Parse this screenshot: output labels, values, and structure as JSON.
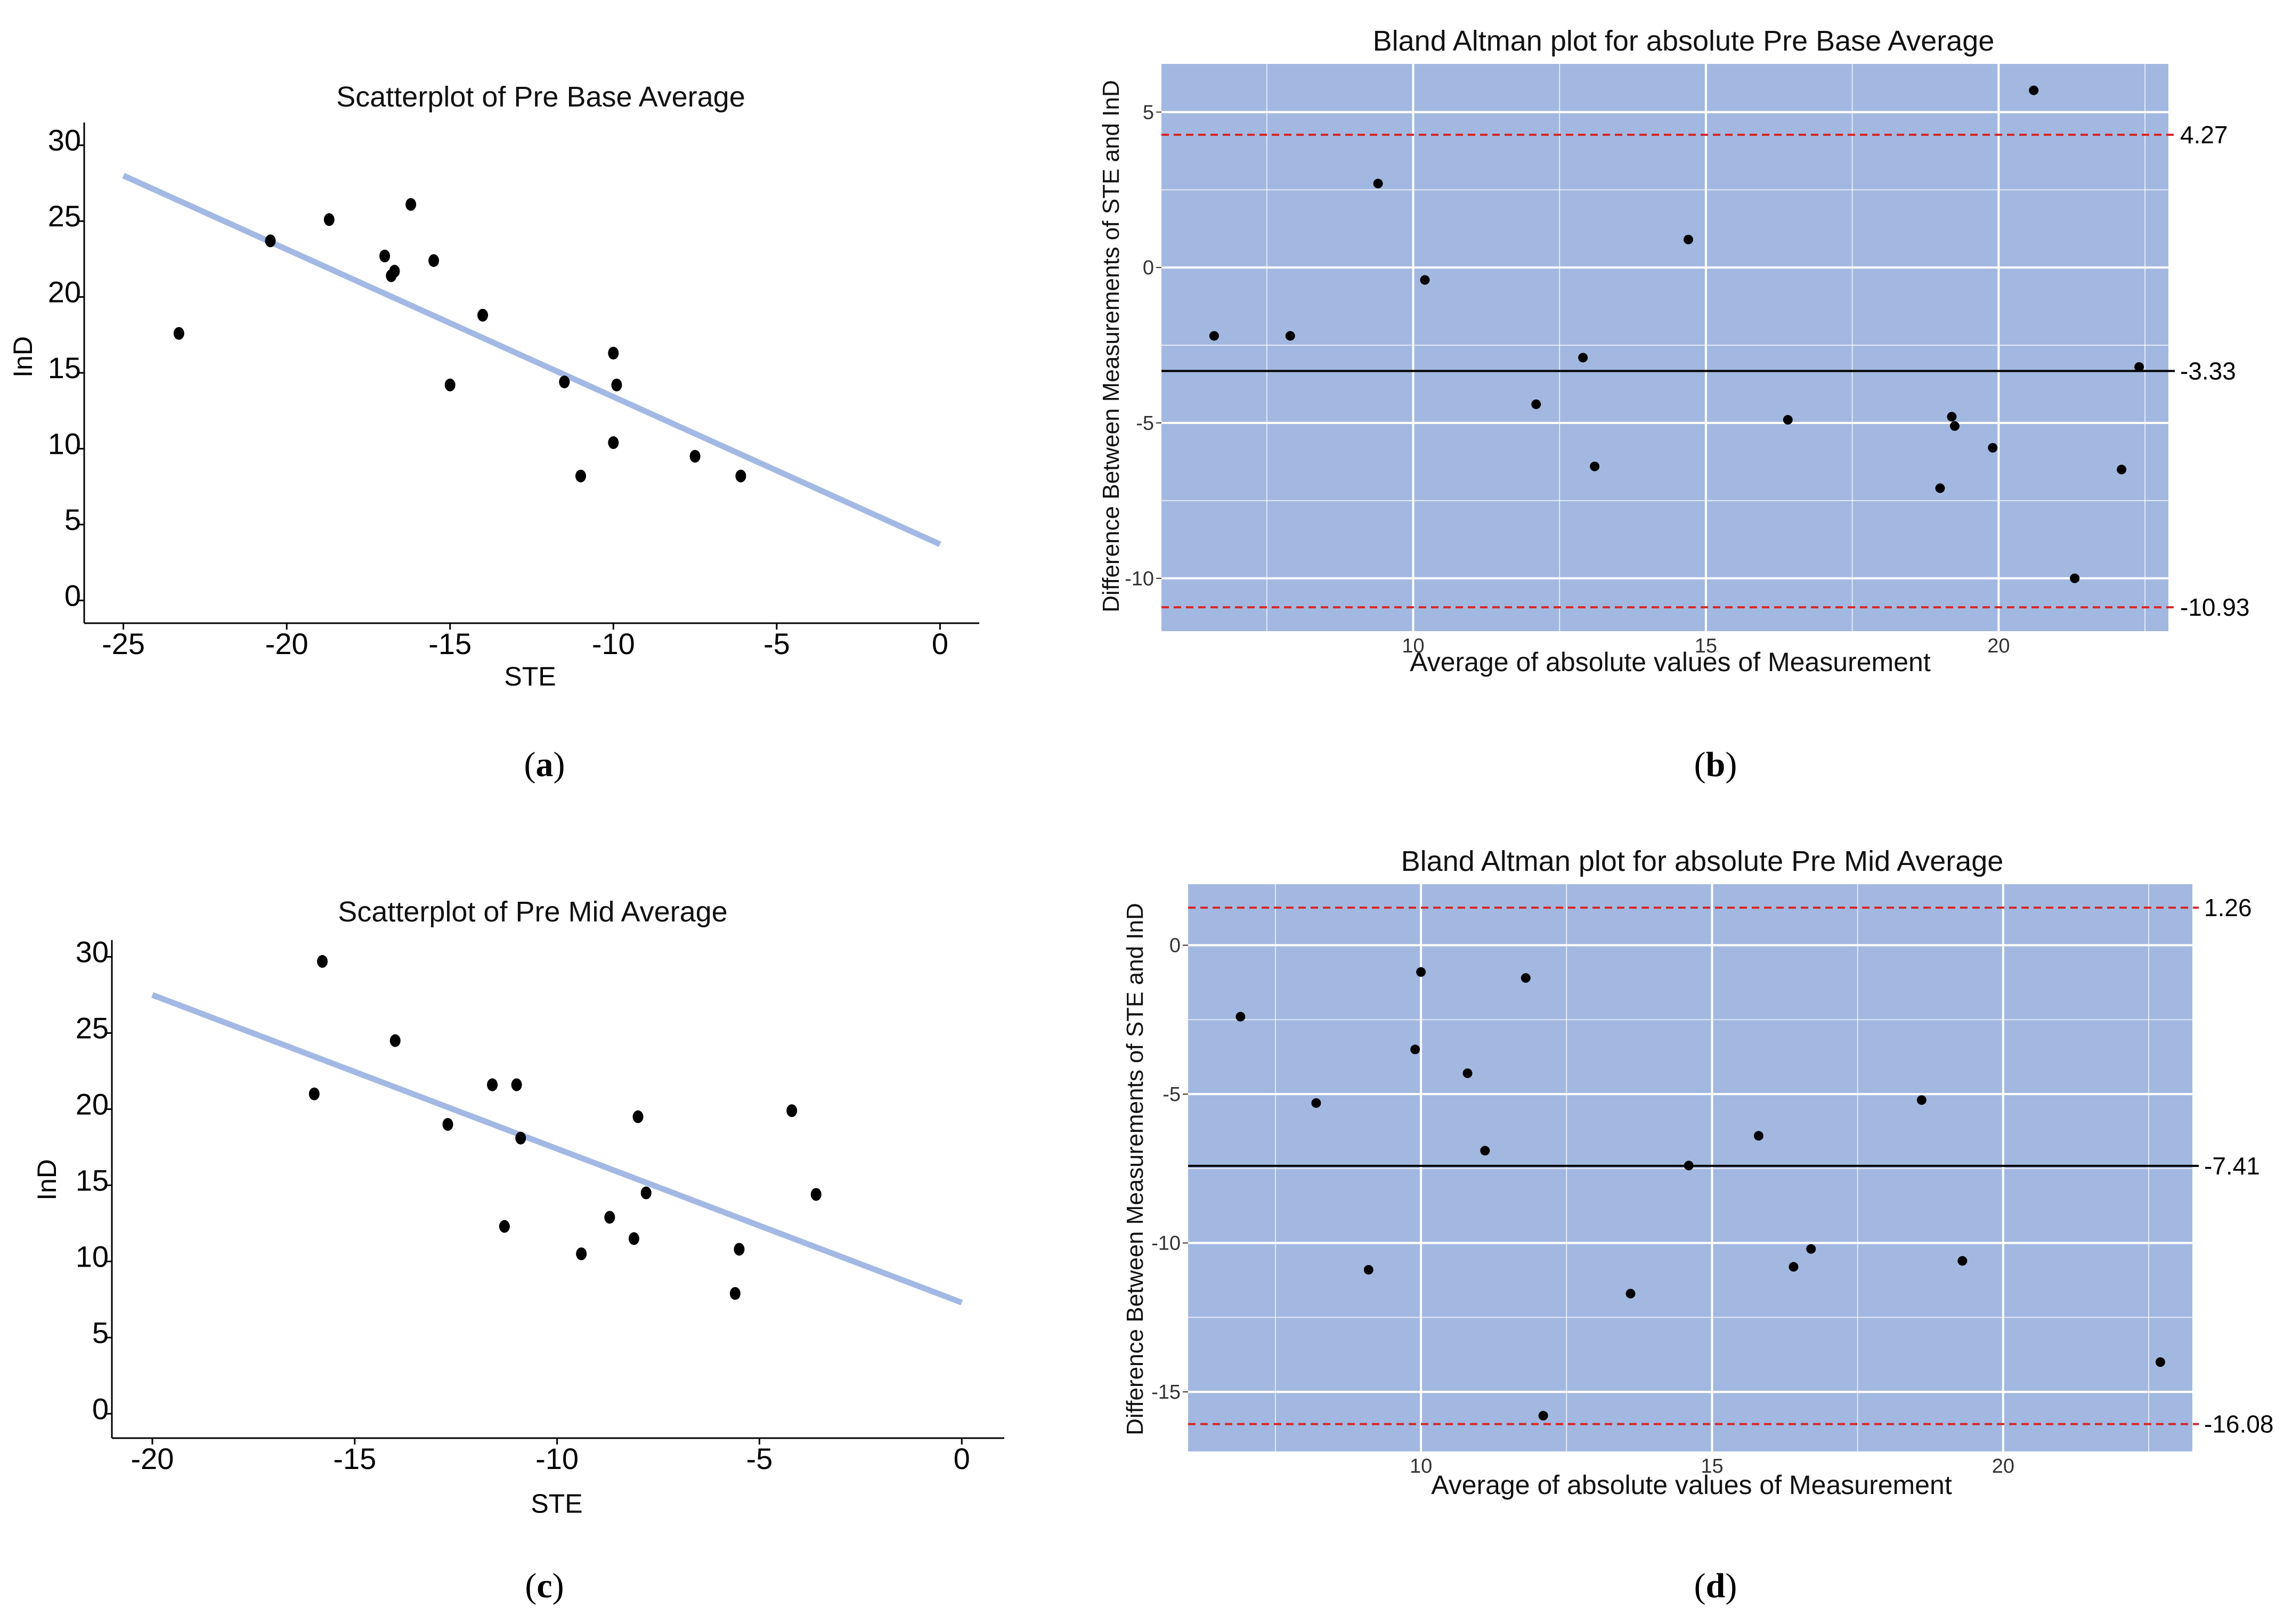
{
  "chart_data": [
    {
      "id": "a",
      "type": "scatter",
      "title": "Scatterplot of Pre Base Average",
      "xlabel": "STE",
      "ylabel": "InD",
      "xlim": [
        -26.2,
        1.2
      ],
      "ylim": [
        -1.5,
        31.5
      ],
      "xticks": [
        -25,
        -20,
        -15,
        -10,
        -5,
        0
      ],
      "yticks": [
        0,
        5,
        10,
        15,
        20,
        25,
        30
      ],
      "x": [
        -23.3,
        -20.5,
        -18.7,
        -17.0,
        -16.8,
        -16.7,
        -16.2,
        -15.5,
        -15.0,
        -14.0,
        -11.5,
        -11.0,
        -10.0,
        -10.0,
        -9.9,
        -7.5,
        -6.1
      ],
      "y": [
        17.6,
        23.7,
        25.1,
        22.7,
        21.4,
        21.7,
        26.1,
        22.4,
        14.2,
        18.8,
        14.4,
        8.2,
        16.3,
        10.4,
        14.2,
        9.5,
        8.2
      ],
      "trendline": {
        "x": [
          -25,
          0
        ],
        "y": [
          28.0,
          3.7
        ],
        "color": "#a3b9e4"
      },
      "caption": "a"
    },
    {
      "id": "b",
      "type": "scatter",
      "title": "Bland Altman plot for absolute Pre Base Average",
      "xlabel": "Average of absolute values of Measurement",
      "ylabel": "Difference Between Measurements of STE and InD",
      "xlim": [
        5.7,
        22.9
      ],
      "ylim": [
        -11.7,
        6.55
      ],
      "xticks": [
        10,
        15,
        20
      ],
      "yticks": [
        -10,
        -5,
        0,
        5
      ],
      "x": [
        6.6,
        7.9,
        9.4,
        10.2,
        12.1,
        12.9,
        13.1,
        14.7,
        16.4,
        19.0,
        19.2,
        19.25,
        19.9,
        20.6,
        21.3,
        22.1,
        22.4
      ],
      "y": [
        -2.2,
        -2.2,
        2.7,
        -0.4,
        -4.4,
        -2.9,
        -6.4,
        0.9,
        -4.9,
        -7.1,
        -4.8,
        -5.1,
        -5.8,
        5.7,
        -10.0,
        -6.5,
        -3.2
      ],
      "mean_line": -3.33,
      "limits": [
        4.27,
        -10.93
      ],
      "mean_label": "-3.33",
      "upper_label": "4.27",
      "lower_label": "-10.93",
      "background": "#a3b8e0",
      "caption": "b"
    },
    {
      "id": "c",
      "type": "scatter",
      "title": "Scatterplot of Pre Mid Average",
      "xlabel": "STE",
      "ylabel": "InD",
      "xlim": [
        -21.0,
        1.05
      ],
      "ylim": [
        -1.6,
        31.1
      ],
      "xticks": [
        -20,
        -15,
        -10,
        -5,
        0
      ],
      "yticks": [
        0,
        5,
        10,
        15,
        20,
        25,
        30
      ],
      "x": [
        -15.8,
        -16.0,
        -14.0,
        -12.7,
        -11.6,
        -11.0,
        -10.9,
        -11.3,
        -9.4,
        -8.7,
        -8.1,
        -8.0,
        -7.8,
        -5.6,
        -5.5,
        -4.2,
        -3.6
      ],
      "y": [
        29.7,
        21.0,
        24.5,
        19.0,
        21.6,
        21.6,
        18.1,
        12.3,
        10.5,
        12.9,
        11.5,
        19.5,
        14.5,
        7.9,
        10.8,
        19.9,
        14.4
      ],
      "trendline": {
        "x": [
          -20,
          0
        ],
        "y": [
          27.5,
          7.3
        ],
        "color": "#a3b9e4"
      },
      "caption": "c"
    },
    {
      "id": "d",
      "type": "scatter",
      "title": "Bland Altman plot for absolute Pre Mid Average",
      "xlabel": "Average of absolute values of Measurement",
      "ylabel": "Difference Between Measurements of STE and InD",
      "xlim": [
        6.0,
        23.25
      ],
      "ylim": [
        -17.0,
        2.05
      ],
      "xticks": [
        10,
        15,
        20
      ],
      "yticks": [
        -15,
        -10,
        -5,
        0
      ],
      "x": [
        6.9,
        8.2,
        9.1,
        9.9,
        10.0,
        10.8,
        11.1,
        11.8,
        12.1,
        13.6,
        14.6,
        15.8,
        16.4,
        16.7,
        18.6,
        19.3,
        22.7
      ],
      "y": [
        -2.4,
        -5.3,
        -10.9,
        -3.5,
        -0.9,
        -4.3,
        -6.9,
        -1.1,
        -15.8,
        -11.7,
        -7.4,
        -6.4,
        -10.8,
        -10.2,
        -5.2,
        -10.6,
        -14.0
      ],
      "mean_line": -7.41,
      "limits": [
        1.26,
        -16.08
      ],
      "mean_label": "-7.41",
      "upper_label": "1.26",
      "lower_label": "-16.08",
      "background": "#a3b8e0",
      "caption": "d"
    }
  ]
}
